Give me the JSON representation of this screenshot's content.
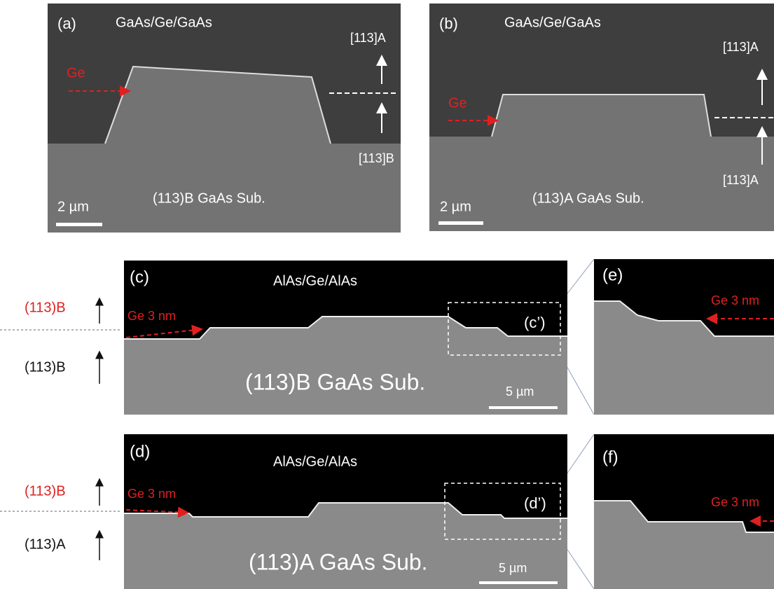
{
  "panels": [
    {
      "label": "(a)",
      "layer": "GaAs/Ge/GaAs",
      "ge": "Ge",
      "upper": "[113]A",
      "lower": "[113]B",
      "scale": "2 µm",
      "substrate": "(113)B GaAs Sub."
    },
    {
      "label": "(b)",
      "layer": "GaAs/Ge/GaAs",
      "ge": "Ge",
      "upper": "[113]A",
      "lower": "[113]A",
      "scale": "2 µm",
      "substrate": "(113)A GaAs Sub."
    },
    {
      "label": "(c)",
      "layer": "AlAs/Ge/AlAs",
      "ge": "Ge 3 nm",
      "inset": "(c’)",
      "scale": "5 µm",
      "substrate": "(113)B GaAs Sub."
    },
    {
      "label": "(d)",
      "layer": "AlAs/Ge/AlAs",
      "ge": "Ge 3 nm",
      "inset": "(d’)",
      "scale": "5 µm",
      "substrate": "(113)A GaAs Sub."
    },
    {
      "label": "(e)",
      "ge": "Ge 3 nm"
    },
    {
      "label": "(f)",
      "ge": "Ge 3 nm"
    }
  ],
  "side_labels": [
    {
      "upper": "(113)B",
      "lower": "(113)B"
    },
    {
      "upper": "(113)B",
      "lower": "(113)A"
    }
  ]
}
